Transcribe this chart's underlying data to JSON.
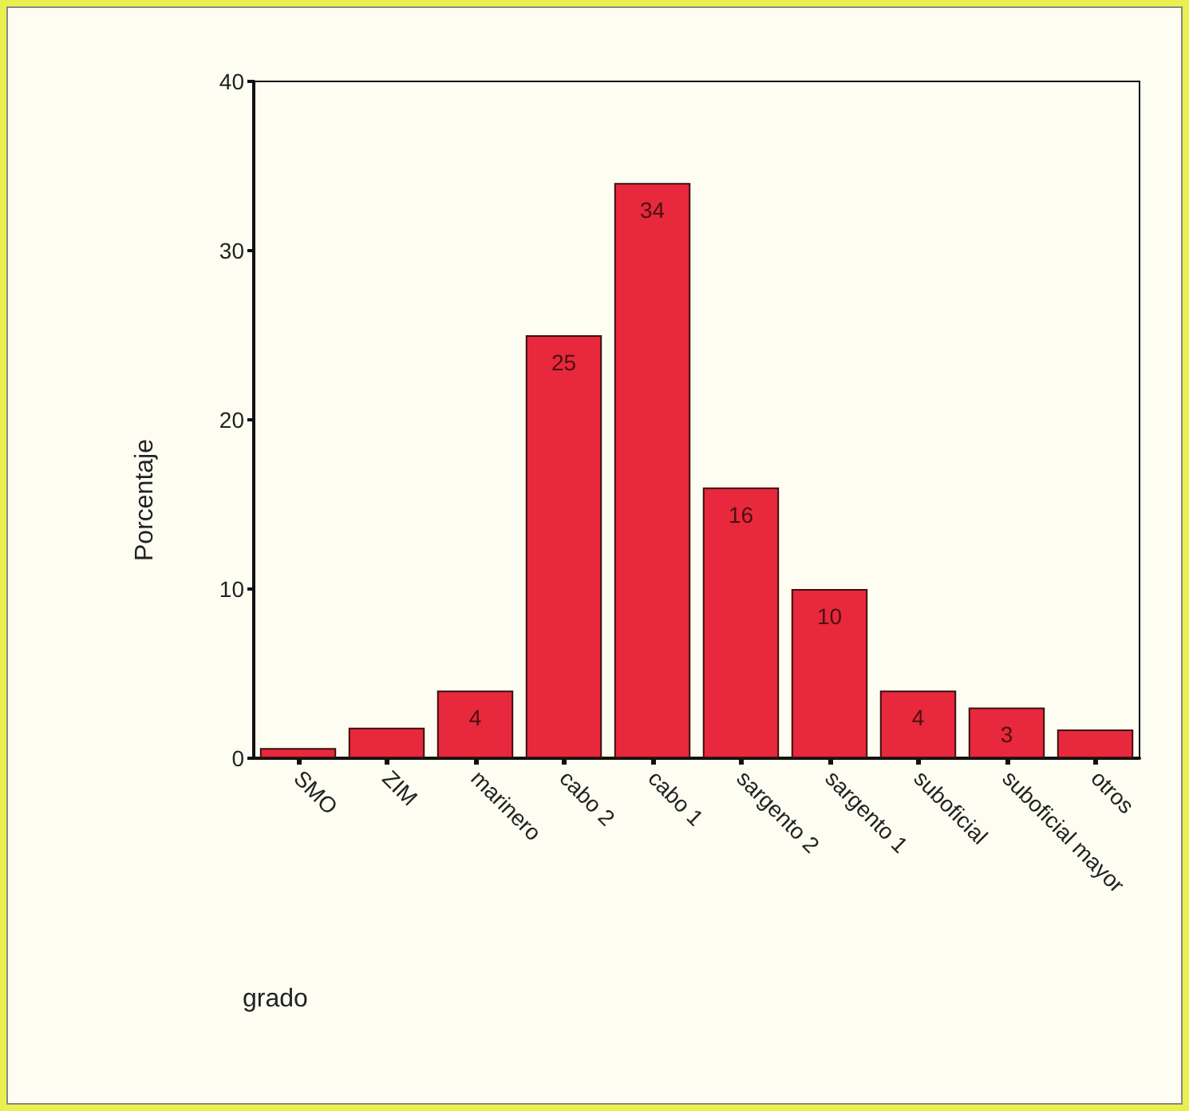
{
  "chart_data": {
    "type": "bar",
    "xlabel": "grado",
    "ylabel": "Porcentaje",
    "categories": [
      "SMO",
      "ZIM",
      "marinero",
      "cabo 2",
      "cabo 1",
      "sargento 2",
      "sargento 1",
      "suboficial",
      "suboficial mayor",
      "otros"
    ],
    "values": [
      0.6,
      1.8,
      4,
      25,
      34,
      16,
      10,
      4,
      3,
      1.7
    ],
    "value_labels": [
      null,
      null,
      "4",
      "25",
      "34",
      "16",
      "10",
      "4",
      "3",
      null
    ],
    "color": "#e8283c",
    "ylim": [
      0,
      40
    ],
    "yticks": [
      0,
      10,
      20,
      30,
      40
    ],
    "grid": false
  }
}
